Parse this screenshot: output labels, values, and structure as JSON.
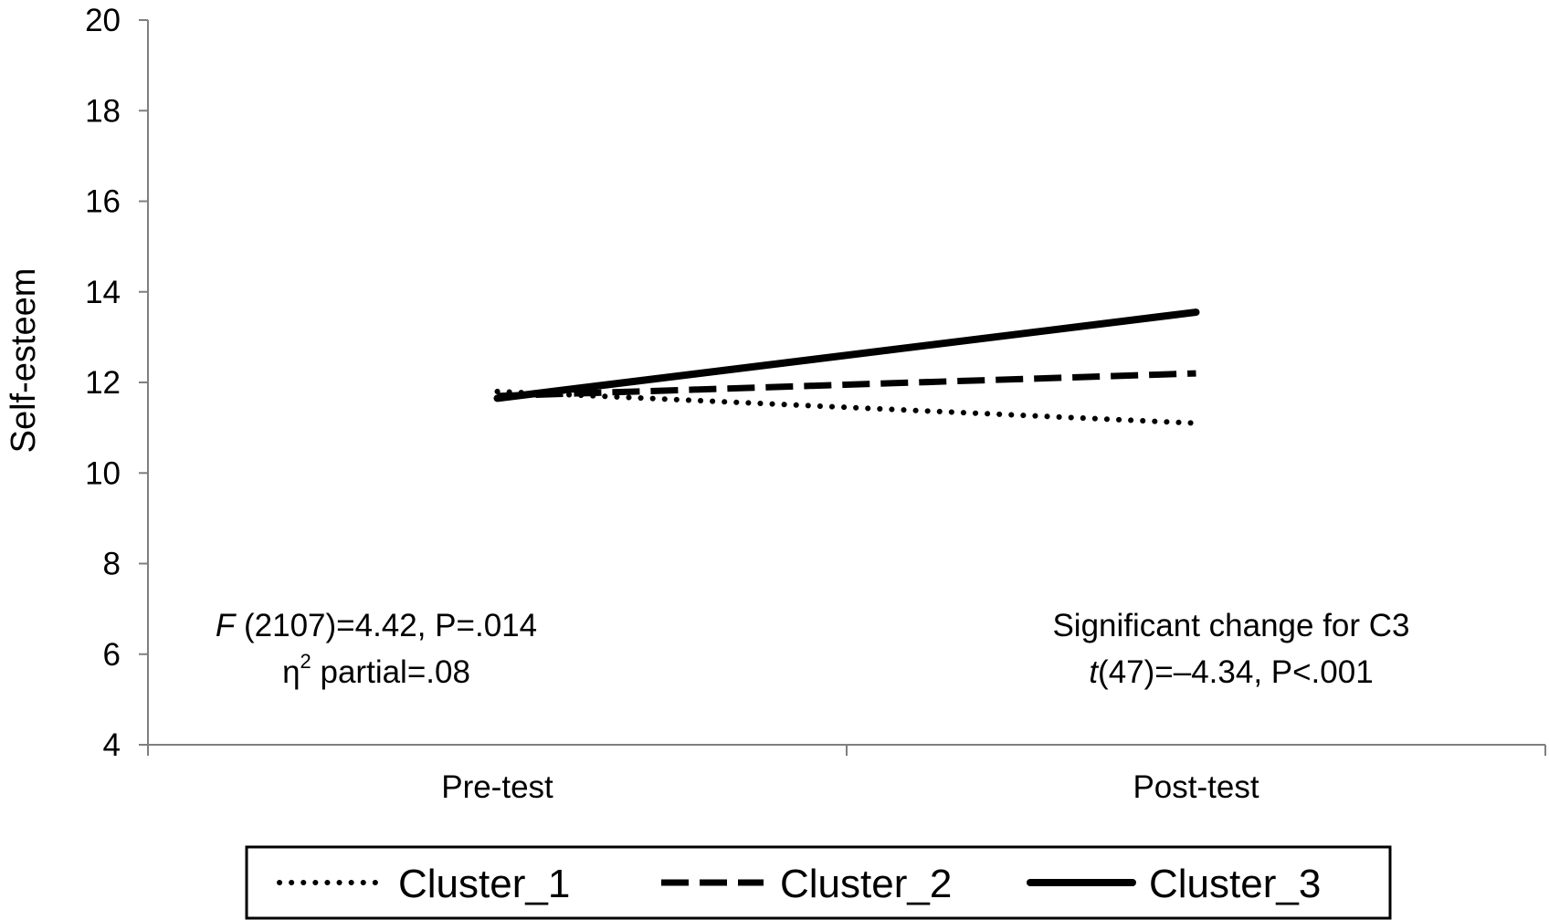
{
  "chart_data": {
    "type": "line",
    "title": "",
    "xlabel": "",
    "ylabel": "Self-esteem",
    "ylim": [
      4,
      20
    ],
    "yticks": [
      4,
      6,
      8,
      10,
      12,
      14,
      16,
      18,
      20
    ],
    "categories": [
      "Pre-test",
      "Post-test"
    ],
    "grid": false,
    "legend": "bottom",
    "series": [
      {
        "name": "Cluster_1",
        "values": [
          11.8,
          11.1
        ],
        "style": "dotted"
      },
      {
        "name": "Cluster_2",
        "values": [
          11.7,
          12.2
        ],
        "style": "dashed"
      },
      {
        "name": "Cluster_3",
        "values": [
          11.65,
          13.55
        ],
        "style": "solid"
      }
    ],
    "annotations": {
      "left_line1_italic": "F",
      "left_line1_rest": " (2107)=4.42, P=.014",
      "left_line2_symbol": "η",
      "left_line2_sup": "2",
      "left_line2_rest": " partial=.08",
      "right_line1": "Significant change for C3",
      "right_line2_italic": "t",
      "right_line2_rest": "(47)=–4.34, P<.001"
    },
    "colors": {
      "line": "#000000",
      "axis": "#7f7f7f"
    }
  }
}
